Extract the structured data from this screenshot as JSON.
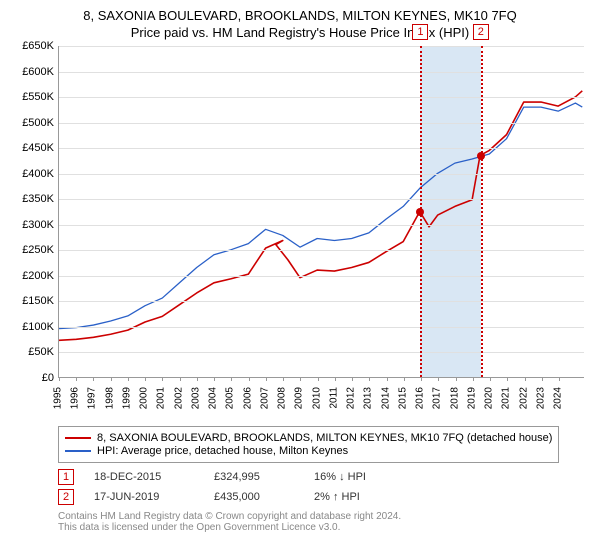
{
  "titles": {
    "line1": "8, SAXONIA BOULEVARD, BROOKLANDS, MILTON KEYNES, MK10 7FQ",
    "line2": "Price paid vs. HM Land Registry's House Price Index (HPI)"
  },
  "chart": {
    "type": "line",
    "ylim": [
      0,
      650000
    ],
    "ytick_step": 50000,
    "yticks": [
      "£0",
      "£50K",
      "£100K",
      "£150K",
      "£200K",
      "£250K",
      "£300K",
      "£350K",
      "£400K",
      "£450K",
      "£500K",
      "£550K",
      "£600K",
      "£650K"
    ],
    "xlim": [
      1995,
      2025.5
    ],
    "xticks": [
      1995,
      1996,
      1997,
      1998,
      1999,
      2000,
      2001,
      2002,
      2003,
      2004,
      2005,
      2006,
      2007,
      2008,
      2009,
      2010,
      2011,
      2012,
      2013,
      2014,
      2015,
      2016,
      2017,
      2018,
      2019,
      2020,
      2021,
      2022,
      2023,
      2024
    ],
    "grid_color": "#e0e0e0",
    "axis_color": "#999999",
    "shade": {
      "from": 2015.96,
      "to": 2019.46,
      "color": "#d9e7f4"
    },
    "vlines": [
      {
        "x": 2015.96,
        "label": "1",
        "color": "#cc0000"
      },
      {
        "x": 2019.46,
        "label": "2",
        "color": "#cc0000"
      }
    ],
    "series": [
      {
        "name": "hpi",
        "color": "#2a60c8",
        "width": 1.3,
        "points": [
          [
            1995,
            95000
          ],
          [
            1996,
            97000
          ],
          [
            1997,
            102000
          ],
          [
            1998,
            110000
          ],
          [
            1999,
            120000
          ],
          [
            2000,
            140000
          ],
          [
            2001,
            155000
          ],
          [
            2002,
            185000
          ],
          [
            2003,
            215000
          ],
          [
            2004,
            240000
          ],
          [
            2005,
            250000
          ],
          [
            2006,
            262000
          ],
          [
            2007,
            290000
          ],
          [
            2008,
            278000
          ],
          [
            2009,
            255000
          ],
          [
            2010,
            272000
          ],
          [
            2011,
            268000
          ],
          [
            2012,
            272000
          ],
          [
            2013,
            283000
          ],
          [
            2014,
            310000
          ],
          [
            2015,
            335000
          ],
          [
            2016,
            372000
          ],
          [
            2017,
            400000
          ],
          [
            2018,
            420000
          ],
          [
            2019,
            428000
          ],
          [
            2020,
            438000
          ],
          [
            2021,
            468000
          ],
          [
            2022,
            530000
          ],
          [
            2023,
            530000
          ],
          [
            2024,
            522000
          ],
          [
            2025,
            538000
          ],
          [
            2025.4,
            530000
          ]
        ]
      },
      {
        "name": "property",
        "color": "#cc0000",
        "width": 1.6,
        "points": [
          [
            1995,
            72000
          ],
          [
            1996,
            74000
          ],
          [
            1997,
            78000
          ],
          [
            1998,
            84000
          ],
          [
            1999,
            92000
          ],
          [
            2000,
            108000
          ],
          [
            2001,
            119000
          ],
          [
            2002,
            142000
          ],
          [
            2003,
            165000
          ],
          [
            2004,
            185000
          ],
          [
            2005,
            193000
          ],
          [
            2006,
            202000
          ],
          [
            2007,
            253000
          ],
          [
            2008,
            268000
          ],
          [
            2007.6,
            260000
          ],
          [
            2008.3,
            230000
          ],
          [
            2009,
            195000
          ],
          [
            2010,
            210000
          ],
          [
            2011,
            208000
          ],
          [
            2012,
            215000
          ],
          [
            2013,
            225000
          ],
          [
            2014,
            246000
          ],
          [
            2015,
            266000
          ],
          [
            2015.96,
            324995
          ],
          [
            2016.5,
            295000
          ],
          [
            2017,
            318000
          ],
          [
            2018,
            335000
          ],
          [
            2019,
            348000
          ],
          [
            2019.46,
            435000
          ],
          [
            2020,
            445000
          ],
          [
            2021,
            476000
          ],
          [
            2022,
            540000
          ],
          [
            2023,
            540000
          ],
          [
            2024,
            532000
          ],
          [
            2025,
            550000
          ],
          [
            2025.4,
            562000
          ]
        ]
      }
    ],
    "markers": [
      {
        "x": 2015.96,
        "y": 324995,
        "color": "#cc0000"
      },
      {
        "x": 2019.46,
        "y": 435000,
        "color": "#cc0000"
      }
    ]
  },
  "legend": {
    "rows": [
      {
        "color": "#cc0000",
        "text": "8, SAXONIA BOULEVARD, BROOKLANDS, MILTON KEYNES, MK10 7FQ (detached house)"
      },
      {
        "color": "#2a60c8",
        "text": "HPI: Average price, detached house, Milton Keynes"
      }
    ]
  },
  "sales": [
    {
      "num": "1",
      "date": "18-DEC-2015",
      "price": "£324,995",
      "delta": "16% ↓ HPI"
    },
    {
      "num": "2",
      "date": "17-JUN-2019",
      "price": "£435,000",
      "delta": "2% ↑ HPI"
    }
  ],
  "footer": {
    "line1": "Contains HM Land Registry data © Crown copyright and database right 2024.",
    "line2": "This data is licensed under the Open Government Licence v3.0."
  }
}
